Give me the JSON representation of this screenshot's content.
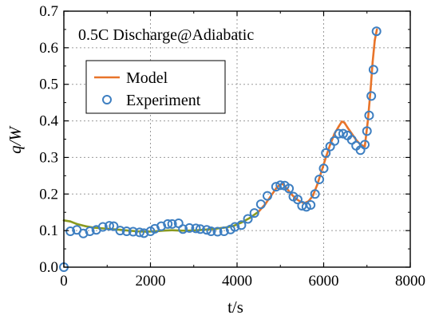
{
  "chart_data": {
    "type": "line",
    "title": "",
    "annotation": "0.5C Discharge@Adiabatic",
    "xlabel": "t/s",
    "ylabel": "q/W",
    "xlim": [
      0,
      8000
    ],
    "ylim": [
      0.0,
      0.7
    ],
    "x_ticks": [
      "0",
      "2000",
      "4000",
      "6000",
      "8000"
    ],
    "y_ticks": [
      "0.0",
      "0.1",
      "0.2",
      "0.3",
      "0.4",
      "0.5",
      "0.6",
      "0.7"
    ],
    "grid": true,
    "legend_position": "top-left",
    "series": [
      {
        "name": "Model",
        "kind": "line",
        "color": "#e8742a",
        "color_low": "#8a9a1e",
        "x": [
          0,
          150,
          300,
          500,
          700,
          900,
          1100,
          1300,
          1500,
          1700,
          1900,
          2100,
          2300,
          2500,
          2700,
          2900,
          3100,
          3300,
          3500,
          3700,
          3900,
          4100,
          4300,
          4500,
          4650,
          4800,
          4900,
          4980,
          5050,
          5150,
          5250,
          5350,
          5450,
          5550,
          5650,
          5750,
          5850,
          5950,
          6050,
          6150,
          6250,
          6350,
          6420,
          6480,
          6550,
          6650,
          6750,
          6850,
          6950,
          7020,
          7080,
          7130,
          7180,
          7230
        ],
        "y": [
          0.128,
          0.125,
          0.118,
          0.112,
          0.108,
          0.106,
          0.104,
          0.102,
          0.1,
          0.098,
          0.097,
          0.098,
          0.1,
          0.101,
          0.1,
          0.1,
          0.101,
          0.103,
          0.105,
          0.108,
          0.112,
          0.122,
          0.135,
          0.152,
          0.172,
          0.198,
          0.215,
          0.225,
          0.228,
          0.215,
          0.2,
          0.188,
          0.18,
          0.175,
          0.18,
          0.195,
          0.225,
          0.262,
          0.3,
          0.335,
          0.365,
          0.385,
          0.398,
          0.395,
          0.382,
          0.365,
          0.348,
          0.335,
          0.33,
          0.4,
          0.48,
          0.56,
          0.62,
          0.65
        ]
      },
      {
        "name": "Experiment",
        "kind": "scatter",
        "color": "#3e7fc1",
        "x": [
          0,
          150,
          300,
          450,
          600,
          750,
          900,
          1050,
          1150,
          1300,
          1450,
          1600,
          1750,
          1850,
          2000,
          2100,
          2250,
          2400,
          2500,
          2650,
          2750,
          2900,
          3050,
          3150,
          3300,
          3400,
          3550,
          3700,
          3850,
          3950,
          4100,
          4250,
          4400,
          4550,
          4700,
          4900,
          5000,
          5100,
          5200,
          5300,
          5400,
          5500,
          5600,
          5700,
          5800,
          5900,
          6000,
          6050,
          6150,
          6250,
          6350,
          6450,
          6550,
          6650,
          6750,
          6850,
          6950,
          7000,
          7050,
          7100,
          7150,
          7220
        ],
        "y": [
          0.0,
          0.098,
          0.102,
          0.092,
          0.098,
          0.102,
          0.11,
          0.113,
          0.112,
          0.1,
          0.098,
          0.097,
          0.095,
          0.093,
          0.098,
          0.105,
          0.112,
          0.118,
          0.118,
          0.12,
          0.104,
          0.107,
          0.106,
          0.104,
          0.102,
          0.098,
          0.097,
          0.098,
          0.103,
          0.11,
          0.115,
          0.132,
          0.148,
          0.172,
          0.195,
          0.22,
          0.224,
          0.223,
          0.215,
          0.193,
          0.185,
          0.168,
          0.165,
          0.17,
          0.2,
          0.24,
          0.27,
          0.312,
          0.33,
          0.345,
          0.365,
          0.365,
          0.36,
          0.348,
          0.332,
          0.32,
          0.335,
          0.372,
          0.415,
          0.468,
          0.54,
          0.645
        ]
      }
    ]
  }
}
